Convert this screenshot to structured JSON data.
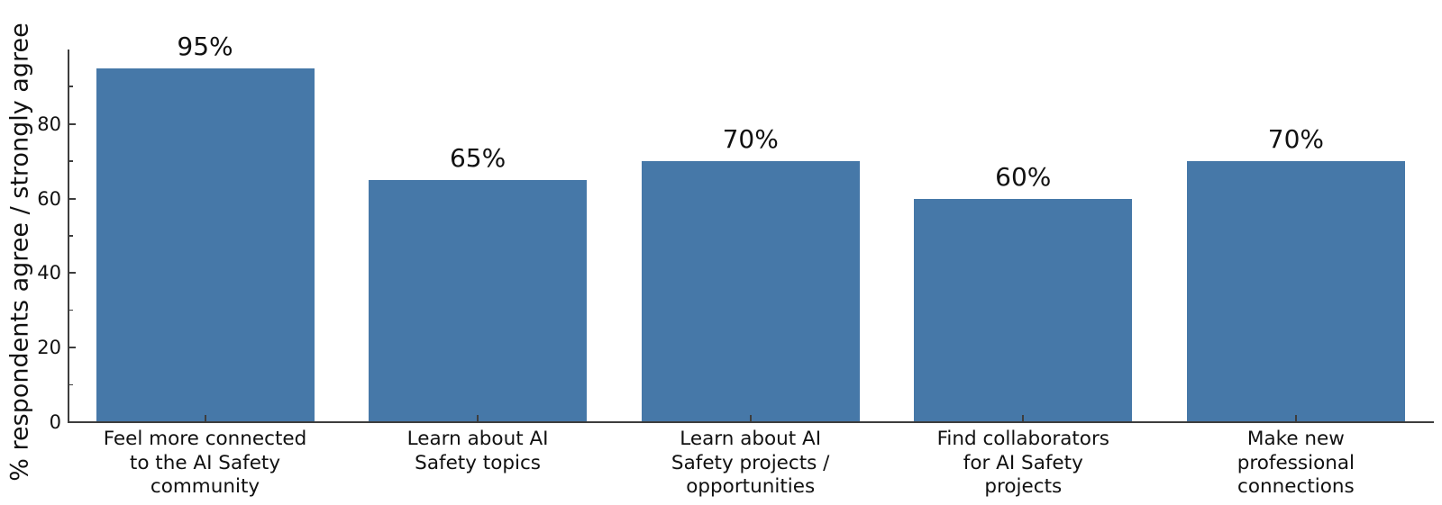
{
  "chart_data": {
    "type": "bar",
    "title": "",
    "ylabel": "% respondents agree / strongly agree",
    "xlabel": "",
    "categories": [
      "Feel more connected\nto the AI Safety\ncommunity",
      "Learn about AI\nSafety topics",
      "Learn about AI\nSafety projects /\nopportunities",
      "Find collaborators\nfor AI Safety\nprojects",
      "Make new\nprofessional\nconnections"
    ],
    "values": [
      95,
      65,
      70,
      60,
      70
    ],
    "value_labels": [
      "95%",
      "65%",
      "70%",
      "60%",
      "70%"
    ],
    "ylim": [
      0,
      100
    ],
    "yticks": [
      0,
      20,
      40,
      60,
      80
    ],
    "ytick_labels": [
      "0",
      "20",
      "40",
      "60",
      "80"
    ],
    "minor_ytick_interval": 10,
    "grid": false,
    "legend": null,
    "tick_direction": "in",
    "bar_color": "#4678a8",
    "axis_color": "#3d3d3d",
    "text_color": "#111111",
    "background_color": "#ffffff"
  }
}
